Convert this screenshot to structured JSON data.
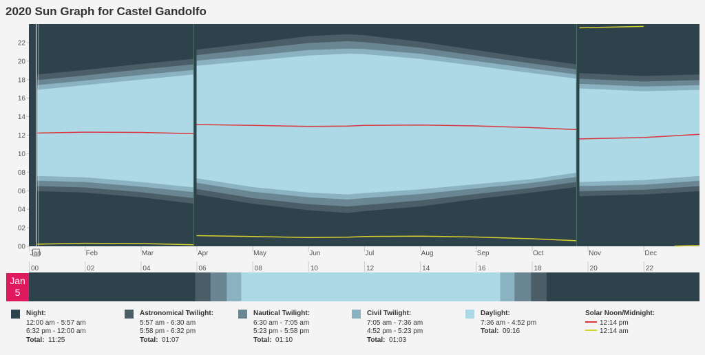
{
  "title": "2020 Sun Graph for Castel Gandolfo",
  "colors": {
    "night": "#2d424b",
    "astronomical": "#4b5d67",
    "nautical": "#6a8693",
    "civil": "#8bb2c1",
    "daylight": "#add8e6",
    "noon": "#d9363e",
    "midnight": "#d9d02f",
    "dst": "#1e8a2a",
    "badge": "#e0195f"
  },
  "chart_data": {
    "type": "area",
    "title": "2020 Sun Graph for Castel Gandolfo",
    "ylim": [
      0,
      24
    ],
    "y_ticks": [
      "00",
      "02",
      "04",
      "06",
      "08",
      "10",
      "12",
      "14",
      "16",
      "18",
      "20",
      "22"
    ],
    "months": [
      "Jan",
      "Feb",
      "Mar",
      "Apr",
      "May",
      "Jun",
      "Jul",
      "Aug",
      "Sep",
      "Oct",
      "Nov",
      "Dec"
    ],
    "hour_ticks": [
      "00",
      "02",
      "04",
      "06",
      "08",
      "10",
      "12",
      "14",
      "16",
      "18",
      "20",
      "22"
    ],
    "dst_start_month": 2.95,
    "dst_end_month": 9.8,
    "samples_month": [
      0.15,
      1.0,
      2.0,
      2.95,
      3.0,
      4.0,
      5.0,
      5.7,
      6.0,
      7.0,
      8.0,
      9.0,
      9.8,
      9.85,
      11.0,
      12.0
    ],
    "astro_dawn": [
      5.95,
      5.8,
      5.3,
      4.6,
      5.6,
      4.6,
      3.9,
      3.6,
      3.8,
      4.3,
      5.1,
      5.8,
      6.4,
      5.4,
      5.6,
      5.95
    ],
    "naut_dawn": [
      6.5,
      6.35,
      5.85,
      5.2,
      6.2,
      5.2,
      4.55,
      4.3,
      4.45,
      4.95,
      5.65,
      6.3,
      6.95,
      5.95,
      6.1,
      6.5
    ],
    "civil_dawn": [
      7.08,
      6.95,
      6.45,
      5.85,
      6.85,
      5.9,
      5.3,
      5.05,
      5.2,
      5.65,
      6.25,
      6.85,
      7.5,
      6.5,
      6.65,
      7.08
    ],
    "sunrise": [
      7.6,
      7.45,
      6.95,
      6.35,
      7.35,
      6.4,
      5.8,
      5.6,
      5.75,
      6.15,
      6.7,
      7.25,
      7.95,
      6.95,
      7.15,
      7.6
    ],
    "sunset": [
      16.9,
      17.4,
      18.0,
      18.55,
      19.5,
      20.05,
      20.6,
      20.8,
      20.75,
      20.25,
      19.5,
      18.7,
      18.1,
      17.05,
      16.75,
      16.9
    ],
    "civil_dusk": [
      17.4,
      17.9,
      18.5,
      19.05,
      20.05,
      20.6,
      21.2,
      21.35,
      21.3,
      20.8,
      20.0,
      19.2,
      18.55,
      17.55,
      17.25,
      17.4
    ],
    "naut_dusk": [
      17.95,
      18.45,
      19.1,
      19.65,
      20.65,
      21.3,
      21.95,
      22.15,
      22.05,
      21.45,
      20.6,
      19.75,
      19.1,
      18.1,
      17.8,
      17.95
    ],
    "astro_dusk": [
      18.55,
      19.05,
      19.7,
      20.25,
      21.25,
      21.95,
      22.7,
      22.9,
      22.8,
      22.1,
      21.2,
      20.3,
      19.65,
      18.7,
      18.4,
      18.55
    ],
    "solar_noon": [
      12.23,
      12.33,
      12.3,
      12.16,
      13.15,
      13.06,
      12.95,
      12.98,
      13.06,
      13.1,
      13.0,
      12.82,
      12.6,
      11.6,
      11.75,
      12.1
    ],
    "solar_midnight": [
      0.23,
      0.33,
      0.3,
      0.16,
      1.15,
      1.06,
      0.95,
      0.98,
      1.06,
      1.1,
      1.0,
      0.82,
      0.6,
      23.6,
      23.75,
      0.1
    ],
    "selected_day": {
      "label_month": "Jan",
      "label_day": "5",
      "segments_hours": [
        {
          "type": "night",
          "from": 0.0,
          "to": 5.95
        },
        {
          "type": "astronomical",
          "from": 5.95,
          "to": 6.5
        },
        {
          "type": "nautical",
          "from": 6.5,
          "to": 7.08
        },
        {
          "type": "civil",
          "from": 7.08,
          "to": 7.6
        },
        {
          "type": "daylight",
          "from": 7.6,
          "to": 16.87
        },
        {
          "type": "civil",
          "from": 16.87,
          "to": 17.38
        },
        {
          "type": "nautical",
          "from": 17.38,
          "to": 17.97
        },
        {
          "type": "astronomical",
          "from": 17.97,
          "to": 18.53
        },
        {
          "type": "night",
          "from": 18.53,
          "to": 24.0
        }
      ]
    }
  },
  "legend": [
    {
      "key": "night",
      "name": "Night:",
      "lines": [
        "12:00 am - 5:57 am",
        "6:32 pm - 12:00 am"
      ],
      "total_label": "Total:",
      "total": "11:25"
    },
    {
      "key": "astronomical",
      "name": "Astronomical Twilight:",
      "lines": [
        "5:57 am - 6:30 am",
        "5:58 pm - 6:32 pm"
      ],
      "total_label": "Total:",
      "total": "01:07"
    },
    {
      "key": "nautical",
      "name": "Nautical Twilight:",
      "lines": [
        "6:30 am - 7:05 am",
        "5:23 pm - 5:58 pm"
      ],
      "total_label": "Total:",
      "total": "01:10"
    },
    {
      "key": "civil",
      "name": "Civil Twilight:",
      "lines": [
        "7:05 am - 7:36 am",
        "4:52 pm - 5:23 pm"
      ],
      "total_label": "Total:",
      "total": "01:03"
    },
    {
      "key": "daylight",
      "name": "Daylight:",
      "lines": [
        "7:36 am - 4:52 pm"
      ],
      "total_label": "Total:",
      "total": "09:16"
    }
  ],
  "solar_legend": {
    "name": "Solar Noon/Midnight:",
    "noon": "12:14 pm",
    "midnight": "12:14 am"
  }
}
